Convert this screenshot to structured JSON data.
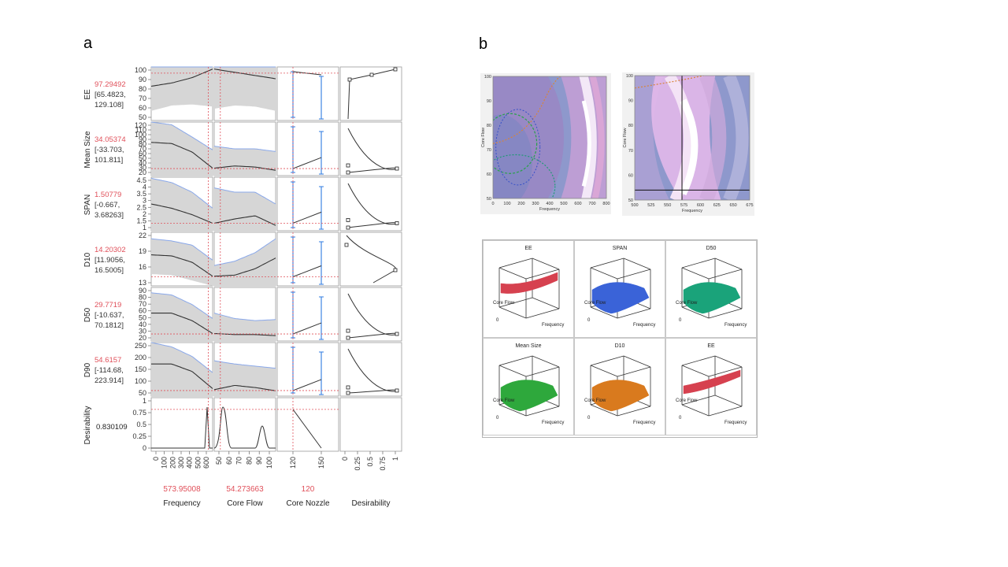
{
  "panel_a_letter": "a",
  "panel_b_letter": "b",
  "chart_data": [
    {
      "type": "line",
      "name_hint": "prediction profiler",
      "rows": [
        {
          "label": "EE",
          "value": "97.29492",
          "ci_line1": "[65.4823,",
          "ci_line2": "129.108]",
          "ticks": [
            "50",
            "60",
            "70",
            "80",
            "90",
            "100"
          ],
          "ylim": [
            50,
            100
          ]
        },
        {
          "label": "Mean Size",
          "value": "34.05374",
          "ci_line1": "[-33.703,",
          "ci_line2": "101.811]",
          "ticks": [
            "20",
            "30",
            "40",
            "50",
            "60",
            "70",
            "80",
            "90",
            "100",
            "110",
            "120"
          ],
          "ylim": [
            20,
            120
          ]
        },
        {
          "label": "SPAN",
          "value": "1.50779",
          "ci_line1": "[-0.667,",
          "ci_line2": "3.68263]",
          "ticks": [
            "1",
            "1.5",
            "2",
            "2.5",
            "3",
            "3.5",
            "4",
            "4.5"
          ],
          "ylim": [
            1,
            4.5
          ]
        },
        {
          "label": "D10",
          "value": "14.20302",
          "ci_line1": "[11.9056,",
          "ci_line2": "16.5005]",
          "ticks": [
            "13",
            "16",
            "19",
            "22"
          ],
          "ylim": [
            12,
            22
          ]
        },
        {
          "label": "D50",
          "value": "29.7719",
          "ci_line1": "[-10.637,",
          "ci_line2": "70.1812]",
          "ticks": [
            "20",
            "30",
            "40",
            "50",
            "60",
            "70",
            "80",
            "90"
          ],
          "ylim": [
            20,
            90
          ]
        },
        {
          "label": "D90",
          "value": "54.6157",
          "ci_line1": "[-114.68,",
          "ci_line2": "223.914]",
          "ticks": [
            "50",
            "100",
            "150",
            "200",
            "250"
          ],
          "ylim": [
            30,
            260
          ]
        },
        {
          "label": "Desirability",
          "value": "0.830109",
          "ci_line1": "",
          "ci_line2": "",
          "ticks": [
            "0",
            "0.25",
            "0.5",
            "0.75",
            "1"
          ],
          "ylim": [
            0,
            1
          ]
        }
      ],
      "factors": [
        {
          "label": "Frequency",
          "value": "573.95008",
          "ticks": [
            "0",
            "100",
            "200",
            "300",
            "400",
            "500",
            "600"
          ]
        },
        {
          "label": "Core Flow",
          "value": "54.273663",
          "ticks": [
            "50",
            "60",
            "70",
            "80",
            "90",
            "100"
          ]
        },
        {
          "label": "Core Nozzle",
          "value": "120",
          "ticks": [
            "120",
            "150"
          ]
        },
        {
          "label": "Desirability",
          "value": "",
          "ticks": [
            "0",
            "0.25",
            "0.5",
            "0.75",
            "1"
          ]
        }
      ]
    },
    {
      "type": "heatmap",
      "name_hint": "contour plot full range",
      "xlabel": "Frequency",
      "ylabel": "Core Flow",
      "xticks": [
        "0",
        "100",
        "200",
        "300",
        "400",
        "500",
        "600",
        "700",
        "800"
      ],
      "yticks": [
        "50",
        "60",
        "70",
        "80",
        "90",
        "100"
      ],
      "xlim": [
        0,
        800
      ],
      "ylim": [
        50,
        100
      ]
    },
    {
      "type": "heatmap",
      "name_hint": "contour plot zoomed",
      "xlabel": "Frequency",
      "ylabel": "Core Flow",
      "xticks": [
        "500",
        "525",
        "550",
        "575",
        "600",
        "625",
        "650",
        "675"
      ],
      "yticks": [
        "50",
        "60",
        "70",
        "80",
        "90",
        "100"
      ],
      "xlim": [
        500,
        680
      ],
      "ylim": [
        50,
        100
      ],
      "crosshair": {
        "x": 574,
        "y": 54
      }
    }
  ],
  "surfaces": [
    {
      "title": "EE",
      "color": "#d6414f"
    },
    {
      "title": "SPAN",
      "color": "#3a63d8"
    },
    {
      "title": "D50",
      "color": "#1aa37a"
    },
    {
      "title": "Mean Size",
      "color": "#2ea83c"
    },
    {
      "title": "D10",
      "color": "#d97a1e"
    },
    {
      "title": "EE",
      "color": "#d6414f"
    }
  ],
  "surface_labels": {
    "core_flow": "Core Flow",
    "frequency": "Frequency",
    "zero": "0"
  },
  "colors": {
    "current_value": "#e0505a",
    "ci_band": "#d6d6d6",
    "ci_edge": "#8aa8ea",
    "error_bar": "#2f7be0"
  }
}
